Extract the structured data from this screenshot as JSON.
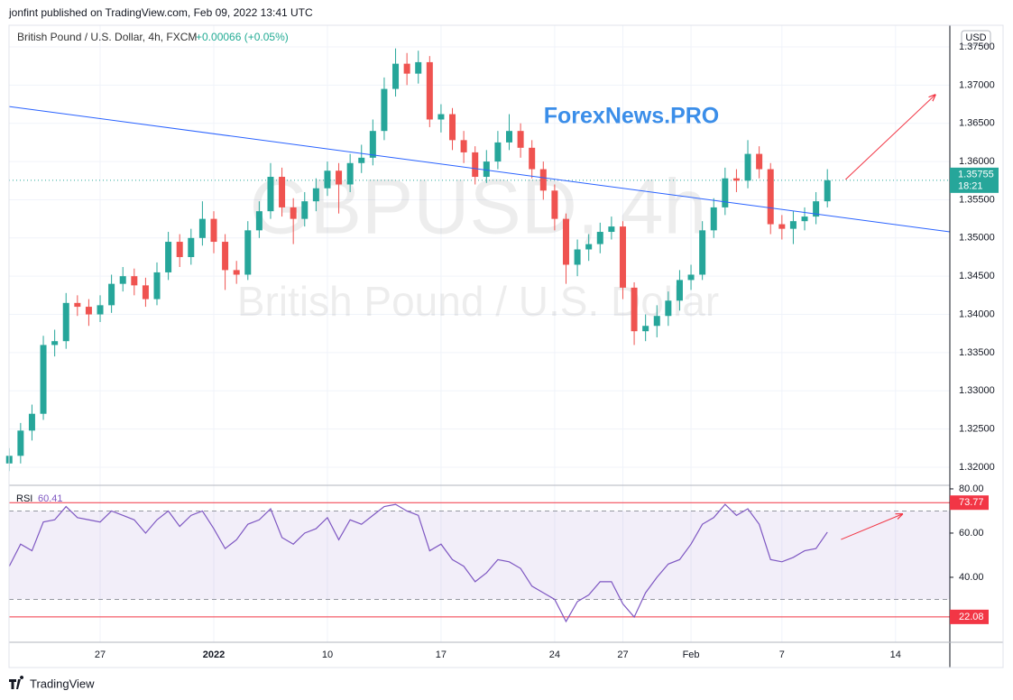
{
  "header": {
    "publisher": "jonfint published on TradingView.com, Feb 09, 2022 13:41 UTC",
    "symbol": "British Pound / U.S. Dollar, 4h, FXCM",
    "change": "+0.00066 (+0.05%)"
  },
  "watermark": {
    "ticker": "GBPUSD, 4h",
    "name": "British Pound / U.S. Dollar"
  },
  "overlay_text": "ForexNews.PRO",
  "footer": "TradingView",
  "price_scale": {
    "currency": "USD",
    "countdown": "18:21"
  },
  "chart_data": [
    {
      "type": "candlestick",
      "xlim": [
        -0.02,
        82.78
      ],
      "xticks": [
        {
          "value": 8,
          "label": "27"
        },
        {
          "value": 18,
          "label": "2022"
        },
        {
          "value": 28,
          "label": "10"
        },
        {
          "value": 38,
          "label": "17"
        },
        {
          "value": 48,
          "label": "24"
        },
        {
          "value": 54,
          "label": "27"
        },
        {
          "value": 60,
          "label": "Feb"
        },
        {
          "value": 68,
          "label": "7"
        },
        {
          "value": 78,
          "label": "14"
        }
      ],
      "ylim": [
        1.31764,
        1.37783
      ],
      "yticks": [
        {
          "value": 1.32,
          "label": "1.32000"
        },
        {
          "value": 1.325,
          "label": "1.32500"
        },
        {
          "value": 1.33,
          "label": "1.33000"
        },
        {
          "value": 1.335,
          "label": "1.33500"
        },
        {
          "value": 1.34,
          "label": "1.34000"
        },
        {
          "value": 1.345,
          "label": "1.34500"
        },
        {
          "value": 1.35,
          "label": "1.35000"
        },
        {
          "value": 1.355,
          "label": "1.35500"
        },
        {
          "value": 1.36,
          "label": "1.36000"
        },
        {
          "value": 1.365,
          "label": "1.36500"
        },
        {
          "value": 1.37,
          "label": "1.37000"
        },
        {
          "value": 1.375,
          "label": "1.37500"
        }
      ],
      "grid": true,
      "up_color": "#26a69a",
      "down_color": "#ef5350",
      "open": [
        1.3205,
        1.3215,
        1.3248,
        1.327,
        1.336,
        1.3365,
        1.3415,
        1.341,
        1.34,
        1.3412,
        1.344,
        1.345,
        1.3438,
        1.342,
        1.3455,
        1.3495,
        1.3475,
        1.35,
        1.3525,
        1.3495,
        1.3458,
        1.3452,
        1.351,
        1.3535,
        1.358,
        1.354,
        1.3525,
        1.3548,
        1.3565,
        1.3588,
        1.357,
        1.3598,
        1.3605,
        1.364,
        1.3695,
        1.3728,
        1.3715,
        1.373,
        1.3655,
        1.3662,
        1.3628,
        1.3612,
        1.358,
        1.36,
        1.3625,
        1.364,
        1.3618,
        1.359,
        1.3562,
        1.3525,
        1.3465,
        1.3485,
        1.3492,
        1.3508,
        1.3515,
        1.3435,
        1.3378,
        1.3385,
        1.3398,
        1.3418,
        1.3445,
        1.3452,
        1.351,
        1.354,
        1.3578,
        1.3575,
        1.361,
        1.359,
        1.3518,
        1.3512,
        1.3522,
        1.3528,
        1.3548
      ],
      "high": [
        1.3225,
        1.3258,
        1.3282,
        1.3372,
        1.338,
        1.3428,
        1.3425,
        1.342,
        1.3425,
        1.3452,
        1.3462,
        1.346,
        1.3448,
        1.3468,
        1.3508,
        1.3505,
        1.3512,
        1.3548,
        1.3535,
        1.3505,
        1.347,
        1.3522,
        1.3548,
        1.3598,
        1.3592,
        1.3552,
        1.356,
        1.3578,
        1.36,
        1.3598,
        1.361,
        1.3622,
        1.3655,
        1.371,
        1.3748,
        1.3742,
        1.3745,
        1.3738,
        1.3675,
        1.367,
        1.364,
        1.362,
        1.3615,
        1.364,
        1.3662,
        1.365,
        1.3628,
        1.36,
        1.357,
        1.3532,
        1.3498,
        1.3505,
        1.352,
        1.3528,
        1.3522,
        1.3442,
        1.34,
        1.3412,
        1.343,
        1.3458,
        1.3465,
        1.3522,
        1.3552,
        1.3592,
        1.359,
        1.3628,
        1.362,
        1.3598,
        1.353,
        1.3535,
        1.354,
        1.356,
        1.359
      ],
      "low": [
        1.3195,
        1.3205,
        1.3235,
        1.3262,
        1.3345,
        1.3355,
        1.3398,
        1.3385,
        1.339,
        1.3402,
        1.343,
        1.3425,
        1.341,
        1.3412,
        1.3445,
        1.3462,
        1.3465,
        1.349,
        1.348,
        1.3432,
        1.344,
        1.3445,
        1.35,
        1.3525,
        1.3528,
        1.3492,
        1.3515,
        1.3535,
        1.3555,
        1.3532,
        1.356,
        1.3585,
        1.3595,
        1.3628,
        1.3685,
        1.37,
        1.3702,
        1.3645,
        1.3638,
        1.3615,
        1.3598,
        1.357,
        1.3572,
        1.359,
        1.3615,
        1.3605,
        1.3578,
        1.355,
        1.351,
        1.344,
        1.345,
        1.347,
        1.348,
        1.3498,
        1.342,
        1.336,
        1.3365,
        1.337,
        1.3385,
        1.3405,
        1.3432,
        1.3445,
        1.35,
        1.353,
        1.356,
        1.3565,
        1.3578,
        1.3505,
        1.3498,
        1.3492,
        1.351,
        1.3518,
        1.354
      ],
      "close": [
        1.3215,
        1.3248,
        1.327,
        1.336,
        1.3365,
        1.3415,
        1.341,
        1.34,
        1.3412,
        1.344,
        1.345,
        1.3438,
        1.342,
        1.3455,
        1.3495,
        1.3475,
        1.35,
        1.3525,
        1.3495,
        1.3458,
        1.3452,
        1.351,
        1.3535,
        1.358,
        1.354,
        1.3525,
        1.3548,
        1.3565,
        1.3588,
        1.357,
        1.3598,
        1.3605,
        1.364,
        1.3695,
        1.3728,
        1.3715,
        1.373,
        1.3655,
        1.3662,
        1.3628,
        1.3612,
        1.358,
        1.36,
        1.3625,
        1.364,
        1.3618,
        1.359,
        1.3562,
        1.3525,
        1.3465,
        1.3485,
        1.3492,
        1.3508,
        1.3515,
        1.3435,
        1.3378,
        1.3385,
        1.3398,
        1.3418,
        1.3445,
        1.3452,
        1.351,
        1.354,
        1.3578,
        1.3575,
        1.361,
        1.359,
        1.3518,
        1.3512,
        1.3522,
        1.3528,
        1.3548,
        1.35755
      ],
      "trendline": {
        "x": [
          0,
          82.78
        ],
        "y": [
          1.3672,
          1.3508
        ],
        "color": "#2962ff"
      },
      "arrow": {
        "x": [
          73.6,
          81.5
        ],
        "y": [
          1.35765,
          1.36874
        ],
        "color": "#f23645"
      }
    },
    {
      "type": "rsi",
      "name": "RSI",
      "color": "#7e57c2",
      "xlim": [
        -0.02,
        82.78
      ],
      "ylim": [
        10.6,
        80.8
      ],
      "yticks": [
        {
          "value": 40,
          "label": "40.00"
        },
        {
          "value": 60,
          "label": "60.00"
        },
        {
          "value": 80,
          "label": "80.00"
        }
      ],
      "band": [
        30,
        70
      ],
      "levels": [
        73.77,
        22.08
      ],
      "level_color": "#f23645",
      "values": [
        45,
        55,
        52,
        65,
        66,
        72,
        67,
        66,
        65,
        70,
        68,
        66,
        60,
        66,
        70,
        63,
        68,
        70,
        62,
        53,
        57,
        64,
        66,
        71,
        58,
        55,
        60,
        62,
        67,
        57,
        66,
        64,
        68,
        72,
        73,
        70,
        68,
        52,
        55,
        48,
        45,
        38,
        42,
        48,
        47,
        44,
        36,
        33,
        30,
        20,
        29,
        32,
        38,
        38,
        28,
        22,
        33,
        40,
        46,
        48,
        55,
        64,
        67,
        73,
        68,
        71,
        64,
        48,
        47,
        49,
        52,
        53,
        60.41
      ],
      "arrow": {
        "x": [
          73.2,
          78.6
        ],
        "y": [
          57.1,
          68.6
        ],
        "color": "#f23645"
      }
    }
  ]
}
